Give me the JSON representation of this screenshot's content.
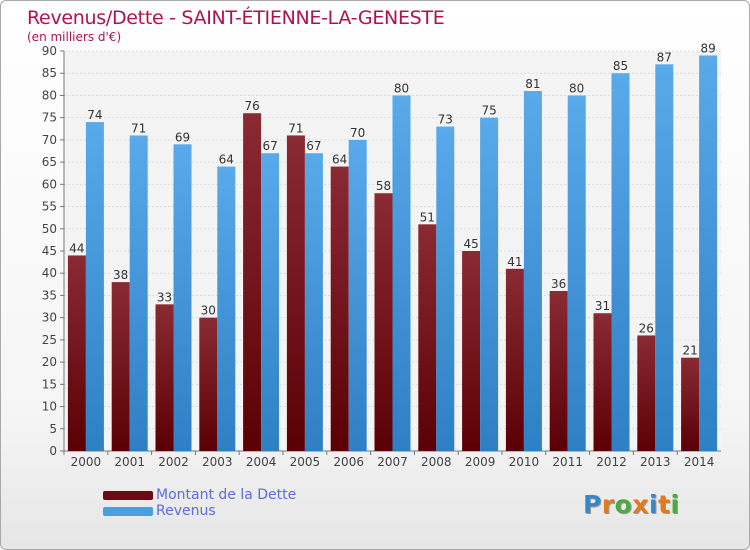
{
  "header": {
    "title": "Revenus/Dette - SAINT-ÉTIENNE-LA-GENESTE",
    "subtitle": "(en milliers d'€)"
  },
  "legend": {
    "items": [
      {
        "label": "Montant de la Dette",
        "color": "#6b0a12",
        "text_color": "#5b6de0"
      },
      {
        "label": "Revenus",
        "color": "#4a9fe0",
        "text_color": "#5b6de0"
      }
    ]
  },
  "logo": {
    "text": "Proxiti",
    "letter_colors": [
      "#3a87c8",
      "#e07a1c",
      "#4ea844",
      "#e07a1c",
      "#3a87c8",
      "#e07a1c",
      "#4ea844"
    ]
  },
  "chart_data": {
    "type": "bar",
    "title": "Revenus/Dette - SAINT-ÉTIENNE-LA-GENESTE",
    "subtitle": "(en milliers d'€)",
    "categories": [
      "2000",
      "2001",
      "2002",
      "2003",
      "2004",
      "2005",
      "2006",
      "2007",
      "2008",
      "2009",
      "2010",
      "2011",
      "2012",
      "2013",
      "2014"
    ],
    "series": [
      {
        "name": "Montant de la Dette",
        "color": "#6b0a12",
        "values": [
          44,
          38,
          33,
          30,
          76,
          71,
          64,
          58,
          51,
          45,
          41,
          36,
          31,
          26,
          21
        ]
      },
      {
        "name": "Revenus",
        "color": "#4a9fe0",
        "values": [
          74,
          71,
          69,
          64,
          67,
          67,
          70,
          80,
          73,
          75,
          81,
          80,
          85,
          87,
          89
        ]
      }
    ],
    "ylim": [
      0,
      90
    ],
    "yticks": [
      0,
      5,
      10,
      15,
      20,
      25,
      30,
      35,
      40,
      45,
      50,
      55,
      60,
      65,
      70,
      75,
      80,
      85,
      90
    ],
    "grid": true,
    "legend_position": "bottom-left"
  }
}
